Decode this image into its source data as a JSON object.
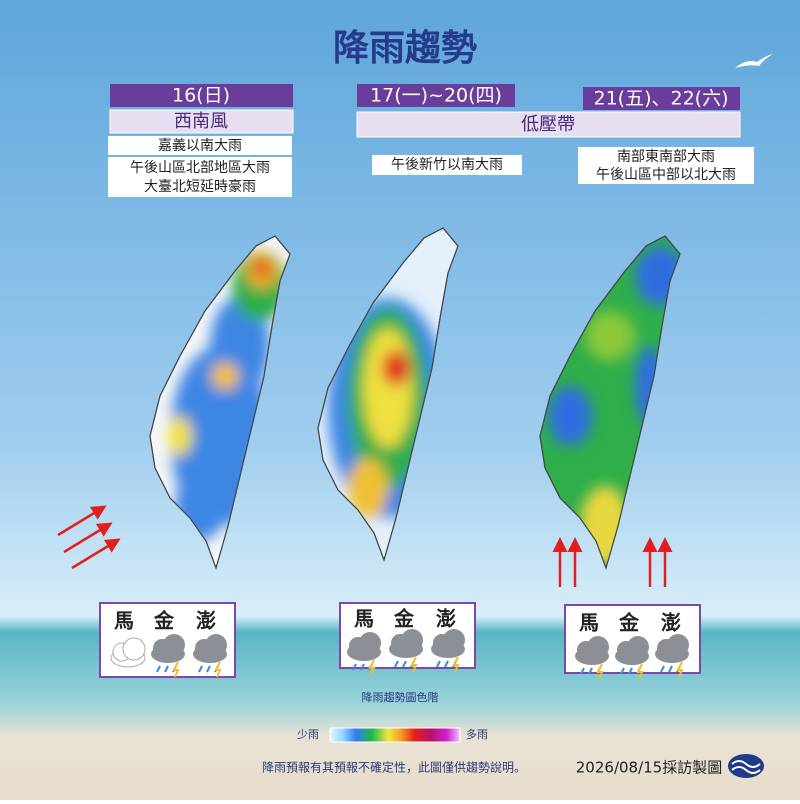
{
  "header": {
    "title": "降雨趨勢"
  },
  "panels": [
    {
      "date": "16(日)",
      "system": "西南風",
      "notes": [
        "嘉義以南大雨",
        "午後山區北部地區大雨",
        "大臺北短延時豪雨"
      ],
      "islands": [
        "馬",
        "金",
        "澎"
      ]
    },
    {
      "date": "17(一)~20(四)",
      "system": "低壓帶",
      "notes": [
        "午後新竹以南大雨"
      ],
      "islands": [
        "馬",
        "金",
        "澎"
      ]
    },
    {
      "date": "21(五)、22(六)",
      "notes": [
        "南部東南部大雨",
        "午後山區中部以北大雨"
      ],
      "islands": [
        "馬",
        "金",
        "澎"
      ]
    }
  ],
  "legend": {
    "title": "降雨趨勢圖色階",
    "low": "少雨",
    "high": "多雨"
  },
  "footer": {
    "disclaimer": "降雨預報有其預報不確定性，此圖僅供趨勢說明。",
    "credit": "2026/08/15採訪製圖"
  }
}
